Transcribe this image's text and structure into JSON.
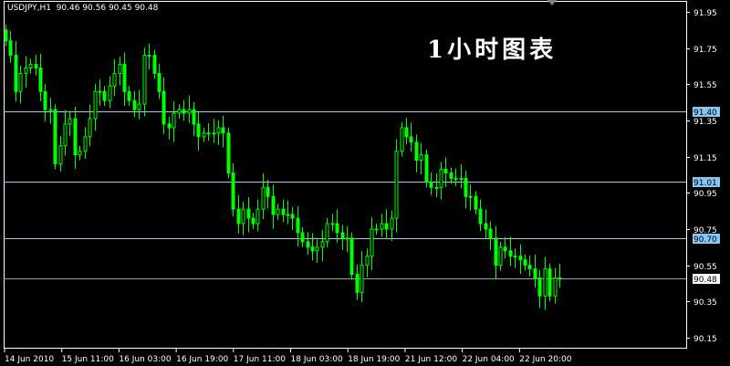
{
  "header": {
    "symbol": "USDJPY,H1",
    "ohlc": "90.46 90.56 90.45 90.48"
  },
  "overlay_title": "1小时图表",
  "colors": {
    "background": "#000000",
    "candle": "#00ff00",
    "grid_frame": "#ffffff",
    "hline": "#a8c8f0",
    "hline_label_bg": "#87c5f5",
    "last_price_line": "#a0a0a0"
  },
  "chart_data": {
    "type": "candlestick",
    "title": "",
    "ylim": [
      90.1,
      91.97
    ],
    "y_ticks": [
      "91.95",
      "91.75",
      "91.55",
      "91.35",
      "91.15",
      "90.95",
      "90.75",
      "90.55",
      "90.35",
      "90.15"
    ],
    "x_ticks": [
      "14 Jun 2010",
      "15 Jun 11:00",
      "16 Jun 03:00",
      "16 Jun 19:00",
      "17 Jun 11:00",
      "18 Jun 03:00",
      "18 Jun 19:00",
      "21 Jun 12:00",
      "22 Jun 04:00",
      "22 Jun 20:00"
    ],
    "horizontal_lines": [
      {
        "value": "91.40",
        "style": "level"
      },
      {
        "value": "91.01",
        "style": "level"
      },
      {
        "value": "90.70",
        "style": "level"
      },
      {
        "value": "90.48",
        "style": "last-price"
      }
    ],
    "first_open": 91.85,
    "close": [
      91.79,
      91.71,
      91.51,
      91.61,
      91.64,
      91.66,
      91.64,
      91.51,
      91.41,
      91.41,
      91.11,
      91.21,
      91.33,
      91.36,
      91.16,
      91.18,
      91.26,
      91.36,
      91.51,
      91.51,
      91.46,
      91.54,
      91.61,
      91.66,
      91.51,
      91.46,
      91.41,
      91.44,
      91.71,
      91.71,
      91.61,
      91.51,
      91.33,
      91.31,
      91.39,
      91.41,
      91.39,
      91.41,
      91.33,
      91.26,
      91.28,
      91.28,
      91.28,
      91.31,
      91.28,
      91.06,
      90.86,
      90.78,
      90.86,
      90.81,
      90.78,
      90.86,
      90.98,
      90.93,
      90.83,
      90.86,
      90.83,
      90.83,
      90.81,
      90.73,
      90.68,
      90.65,
      90.63,
      90.65,
      90.68,
      90.78,
      90.78,
      90.73,
      90.7,
      90.7,
      90.5,
      90.4,
      90.55,
      90.6,
      90.75,
      90.75,
      90.78,
      90.75,
      90.81,
      91.18,
      91.31,
      91.26,
      91.23,
      91.13,
      91.16,
      91.01,
      90.98,
      90.98,
      91.08,
      91.06,
      91.03,
      91.03,
      91.03,
      90.93,
      90.93,
      90.86,
      90.78,
      90.75,
      90.7,
      90.55,
      90.65,
      90.63,
      90.6,
      90.6,
      90.58,
      90.55,
      90.53,
      90.48,
      90.38,
      90.53,
      90.38,
      90.48,
      90.48
    ]
  }
}
